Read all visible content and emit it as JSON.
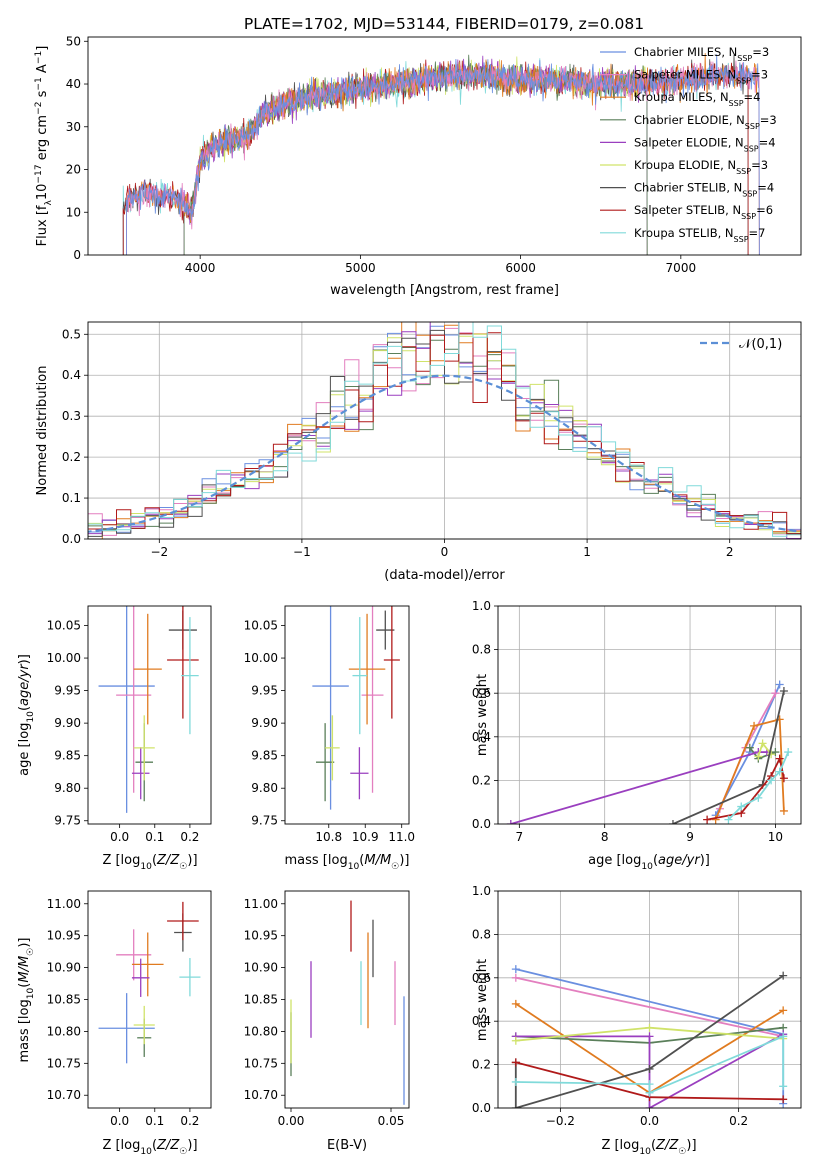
{
  "figure_title": "PLATE=1702, MJD=53144, FIBERID=0179, z=0.081",
  "colors": {
    "Chabrier MILES": "#6a8fe0",
    "Salpeter MILES": "#e37fbf",
    "Kroupa MILES": "#e07b20",
    "Chabrier ELODIE": "#5a7f5a",
    "Salpeter ELODIE": "#9a3fbf",
    "Kroupa ELODIE": "#d0e36a",
    "Chabrier STELIB": "#505050",
    "Salpeter STELIB": "#b01a1a",
    "Kroupa STELIB": "#80dada"
  },
  "chart_data": [
    {
      "id": "spectrum",
      "type": "line",
      "title": "PLATE=1702, MJD=53144, FIBERID=0179, z=0.081",
      "xlabel": "wavelength [Angstrom, rest frame]",
      "ylabel": "Flux [f_λ 10^-17 erg cm^-2 s^-1 A^-1]",
      "xlim": [
        3300,
        7750
      ],
      "ylim": [
        0,
        51
      ],
      "xticks": [
        4000,
        5000,
        6000,
        7000,
        8000
      ],
      "yticks": [
        0,
        10,
        20,
        30,
        40,
        50
      ],
      "legend_position": "top-right",
      "series": [
        {
          "name": "Chabrier MILES",
          "label": "Chabrier MILES, N",
          "sub": "SSP",
          "suffix": "=3"
        },
        {
          "name": "Salpeter MILES",
          "label": "Salpeter MILES, N",
          "sub": "SSP",
          "suffix": "=3"
        },
        {
          "name": "Kroupa MILES",
          "label": "Kroupa MILES, N",
          "sub": "SSP",
          "suffix": "=4"
        },
        {
          "name": "Chabrier ELODIE",
          "label": "Chabrier ELODIE, N",
          "sub": "SSP",
          "suffix": "=3"
        },
        {
          "name": "Salpeter ELODIE",
          "label": "Salpeter ELODIE, N",
          "sub": "SSP",
          "suffix": "=4"
        },
        {
          "name": "Kroupa ELODIE",
          "label": "Kroupa ELODIE, N",
          "sub": "SSP",
          "suffix": "=3"
        },
        {
          "name": "Chabrier STELIB",
          "label": "Chabrier STELIB, N",
          "sub": "SSP",
          "suffix": "=4"
        },
        {
          "name": "Salpeter STELIB",
          "label": "Salpeter STELIB, N",
          "sub": "SSP",
          "suffix": "=6"
        },
        {
          "name": "Kroupa STELIB",
          "label": "Kroupa STELIB, N",
          "sub": "SSP",
          "suffix": "=7"
        }
      ],
      "continuum": {
        "x": [
          3520,
          3550,
          3600,
          3650,
          3700,
          3750,
          3800,
          3850,
          3900,
          3950,
          4000,
          4100,
          4200,
          4300,
          4400,
          4500,
          4600,
          4800,
          5000,
          5200,
          5400,
          5600,
          5800,
          6000,
          6200,
          6400,
          6600,
          6800,
          7000,
          7200,
          7400,
          7500
        ],
        "y": [
          10,
          13,
          14,
          15,
          14,
          13,
          14,
          13,
          12,
          10,
          22,
          26,
          27,
          28,
          33,
          35,
          36,
          38,
          39,
          40,
          41,
          42,
          42,
          41,
          41,
          40,
          40,
          40,
          41,
          42,
          42,
          41
        ]
      }
    },
    {
      "id": "residuals",
      "type": "line",
      "xlabel": "(data-model)/error",
      "ylabel": "Normed distribution",
      "xlim": [
        -2.5,
        2.5
      ],
      "ylim": [
        0,
        0.53
      ],
      "xticks": [
        -2,
        -1,
        0,
        1,
        2
      ],
      "xtick_labels": [
        "−2",
        "−1",
        "0",
        "1",
        "2"
      ],
      "yticks": [
        0.0,
        0.1,
        0.2,
        0.3,
        0.4,
        0.5
      ],
      "ytick_labels": [
        "0.0",
        "0.1",
        "0.2",
        "0.3",
        "0.4",
        "0.5"
      ],
      "grid": true,
      "legend_position": "top-right",
      "reference_curve": {
        "name": "N(0,1)",
        "label": "𝒩(0,1)",
        "mean": 0,
        "sigma": 1
      }
    },
    {
      "id": "age_vs_Z",
      "type": "scatter",
      "xlabel": "Z [log10(Z/Z☉)]",
      "ylabel": "age [log10(age/yr)]",
      "xlim": [
        -0.09,
        0.26
      ],
      "ylim": [
        9.745,
        10.08
      ],
      "xticks": [
        0.0,
        0.1,
        0.2
      ],
      "xtick_labels": [
        "0.0",
        "0.1",
        "0.2"
      ],
      "yticks": [
        9.75,
        9.8,
        9.85,
        9.9,
        9.95,
        10.0,
        10.05
      ],
      "ytick_labels": [
        "9.75",
        "9.80",
        "9.85",
        "9.90",
        "9.95",
        "10.00",
        "10.05"
      ],
      "points": [
        {
          "name": "Chabrier MILES",
          "x": 0.02,
          "y": 9.957,
          "xerr": 0.08,
          "yerr": 0.195
        },
        {
          "name": "Salpeter MILES",
          "x": 0.04,
          "y": 9.943,
          "xerr": 0.05,
          "yerr": 0.15
        },
        {
          "name": "Kroupa MILES",
          "x": 0.08,
          "y": 9.983,
          "xerr": 0.04,
          "yerr": 0.085
        },
        {
          "name": "Chabrier ELODIE",
          "x": 0.07,
          "y": 9.84,
          "xerr": 0.025,
          "yerr": 0.06
        },
        {
          "name": "Salpeter ELODIE",
          "x": 0.06,
          "y": 9.823,
          "xerr": 0.025,
          "yerr": 0.04
        },
        {
          "name": "Kroupa ELODIE",
          "x": 0.07,
          "y": 9.862,
          "xerr": 0.03,
          "yerr": 0.05
        },
        {
          "name": "Chabrier STELIB",
          "x": 0.18,
          "y": 10.043,
          "xerr": 0.04,
          "yerr": 0.03
        },
        {
          "name": "Salpeter STELIB",
          "x": 0.18,
          "y": 9.997,
          "xerr": 0.045,
          "yerr": 0.09
        },
        {
          "name": "Kroupa STELIB",
          "x": 0.2,
          "y": 9.973,
          "xerr": 0.025,
          "yerr": 0.09
        }
      ]
    },
    {
      "id": "age_vs_mass",
      "type": "scatter",
      "xlabel": "mass [log10(M/M☉)]",
      "xlim": [
        10.68,
        11.02
      ],
      "ylim": [
        9.745,
        10.08
      ],
      "xticks": [
        10.8,
        10.9,
        11.0
      ],
      "xtick_labels": [
        "10.8",
        "10.9",
        "11.0"
      ],
      "yticks": [
        9.75,
        9.8,
        9.85,
        9.9,
        9.95,
        10.0,
        10.05
      ],
      "ytick_labels": [
        "9.75",
        "9.80",
        "9.85",
        "9.90",
        "9.95",
        "10.00",
        "10.05"
      ],
      "points": [
        {
          "name": "Chabrier MILES",
          "x": 10.805,
          "y": 9.957,
          "xerr": 0.05,
          "yerr": 0.19
        },
        {
          "name": "Salpeter MILES",
          "x": 10.92,
          "y": 9.943,
          "xerr": 0.03,
          "yerr": 0.15
        },
        {
          "name": "Kroupa MILES",
          "x": 10.905,
          "y": 9.983,
          "xerr": 0.05,
          "yerr": 0.085
        },
        {
          "name": "Chabrier ELODIE",
          "x": 10.79,
          "y": 9.84,
          "xerr": 0.025,
          "yerr": 0.06
        },
        {
          "name": "Salpeter ELODIE",
          "x": 10.884,
          "y": 9.823,
          "xerr": 0.025,
          "yerr": 0.04
        },
        {
          "name": "Kroupa ELODIE",
          "x": 10.81,
          "y": 9.862,
          "xerr": 0.02,
          "yerr": 0.05
        },
        {
          "name": "Chabrier STELIB",
          "x": 10.955,
          "y": 10.043,
          "xerr": 0.025,
          "yerr": 0.03
        },
        {
          "name": "Salpeter STELIB",
          "x": 10.973,
          "y": 9.997,
          "xerr": 0.022,
          "yerr": 0.09
        },
        {
          "name": "Kroupa STELIB",
          "x": 10.885,
          "y": 9.973,
          "xerr": 0.02,
          "yerr": 0.09
        }
      ]
    },
    {
      "id": "mass_weight_vs_age",
      "type": "line",
      "xlabel": "age [log10(age/yr)]",
      "ylabel": "mass weight",
      "xlim": [
        6.75,
        10.3
      ],
      "ylim": [
        0,
        1
      ],
      "xticks": [
        7,
        8,
        9,
        10
      ],
      "yticks": [
        0.0,
        0.2,
        0.4,
        0.6,
        0.8,
        1.0
      ],
      "ytick_labels": [
        "0.0",
        "0.2",
        "0.4",
        "0.6",
        "0.8",
        "1.0"
      ],
      "grid": true,
      "series": [
        {
          "name": "Chabrier MILES",
          "x": [
            9.3,
            9.7,
            10.05
          ],
          "y": [
            0.04,
            0.33,
            0.64
          ]
        },
        {
          "name": "Salpeter MILES",
          "x": [
            9.35,
            9.65,
            10.0
          ],
          "y": [
            0.07,
            0.35,
            0.6
          ]
        },
        {
          "name": "Kroupa MILES",
          "x": [
            9.3,
            9.75,
            10.05,
            10.1
          ],
          "y": [
            0.02,
            0.45,
            0.48,
            0.06
          ]
        },
        {
          "name": "Chabrier ELODIE",
          "x": [
            9.7,
            9.8,
            10.0
          ],
          "y": [
            0.35,
            0.3,
            0.33
          ]
        },
        {
          "name": "Salpeter ELODIE",
          "x": [
            6.9,
            9.8,
            9.9
          ],
          "y": [
            0.0,
            0.33,
            0.33
          ]
        },
        {
          "name": "Kroupa ELODIE",
          "x": [
            9.8,
            9.85,
            9.95
          ],
          "y": [
            0.31,
            0.37,
            0.32
          ]
        },
        {
          "name": "Chabrier STELIB",
          "x": [
            8.8,
            9.85,
            10.1
          ],
          "y": [
            0.0,
            0.18,
            0.61
          ]
        },
        {
          "name": "Salpeter STELIB",
          "x": [
            9.2,
            9.6,
            9.95,
            10.05,
            10.1
          ],
          "y": [
            0.02,
            0.05,
            0.22,
            0.3,
            0.21
          ]
        },
        {
          "name": "Kroupa STELIB",
          "x": [
            9.45,
            9.6,
            9.8,
            9.95,
            10.05,
            10.15
          ],
          "y": [
            0.02,
            0.08,
            0.12,
            0.2,
            0.24,
            0.33
          ]
        }
      ]
    },
    {
      "id": "mass_vs_Z",
      "type": "scatter",
      "xlabel": "Z [log10(Z/Z☉)]",
      "ylabel": "mass [log10(M/M☉)]",
      "xlim": [
        -0.09,
        0.26
      ],
      "ylim": [
        10.68,
        11.02
      ],
      "xticks": [
        0.0,
        0.1,
        0.2
      ],
      "xtick_labels": [
        "0.0",
        "0.1",
        "0.2"
      ],
      "yticks": [
        10.7,
        10.75,
        10.8,
        10.85,
        10.9,
        10.95,
        11.0
      ],
      "ytick_labels": [
        "10.70",
        "10.75",
        "10.80",
        "10.85",
        "10.90",
        "10.95",
        "11.00"
      ],
      "points": [
        {
          "name": "Chabrier MILES",
          "x": 0.02,
          "y": 10.805,
          "xerr": 0.08,
          "yerr": 0.055
        },
        {
          "name": "Salpeter MILES",
          "x": 0.04,
          "y": 10.92,
          "xerr": 0.05,
          "yerr": 0.04
        },
        {
          "name": "Kroupa MILES",
          "x": 0.08,
          "y": 10.905,
          "xerr": 0.045,
          "yerr": 0.05
        },
        {
          "name": "Chabrier ELODIE",
          "x": 0.07,
          "y": 10.79,
          "xerr": 0.02,
          "yerr": 0.03
        },
        {
          "name": "Salpeter ELODIE",
          "x": 0.06,
          "y": 10.884,
          "xerr": 0.025,
          "yerr": 0.03
        },
        {
          "name": "Kroupa ELODIE",
          "x": 0.07,
          "y": 10.81,
          "xerr": 0.03,
          "yerr": 0.03
        },
        {
          "name": "Chabrier STELIB",
          "x": 0.18,
          "y": 10.955,
          "xerr": 0.025,
          "yerr": 0.03
        },
        {
          "name": "Salpeter STELIB",
          "x": 0.18,
          "y": 10.973,
          "xerr": 0.045,
          "yerr": 0.03
        },
        {
          "name": "Kroupa STELIB",
          "x": 0.2,
          "y": 10.885,
          "xerr": 0.03,
          "yerr": 0.03
        }
      ]
    },
    {
      "id": "mass_vs_ebv",
      "type": "scatter",
      "xlabel": "E(B-V)",
      "xlim": [
        -0.003,
        0.059
      ],
      "ylim": [
        10.68,
        11.02
      ],
      "xticks": [
        0.0,
        0.05
      ],
      "xtick_labels": [
        "0.00",
        "0.05"
      ],
      "yticks": [
        10.7,
        10.75,
        10.8,
        10.85,
        10.9,
        10.95,
        11.0
      ],
      "ytick_labels": [
        "10.70",
        "10.75",
        "10.80",
        "10.85",
        "10.90",
        "10.95",
        "11.00"
      ],
      "points": [
        {
          "name": "Chabrier MILES",
          "x": 0.0565,
          "y": 10.77,
          "xerr": 0,
          "yerr": 0.085
        },
        {
          "name": "Salpeter MILES",
          "x": 0.052,
          "y": 10.86,
          "xerr": 0,
          "yerr": 0.05
        },
        {
          "name": "Kroupa MILES",
          "x": 0.0385,
          "y": 10.88,
          "xerr": 0,
          "yerr": 0.075
        },
        {
          "name": "Chabrier ELODIE",
          "x": 0.0,
          "y": 10.78,
          "xerr": 0,
          "yerr": 0.05
        },
        {
          "name": "Salpeter ELODIE",
          "x": 0.01,
          "y": 10.85,
          "xerr": 0,
          "yerr": 0.06
        },
        {
          "name": "Kroupa ELODIE",
          "x": 0.0,
          "y": 10.8,
          "xerr": 0,
          "yerr": 0.05
        },
        {
          "name": "Chabrier STELIB",
          "x": 0.041,
          "y": 10.93,
          "xerr": 0,
          "yerr": 0.045
        },
        {
          "name": "Salpeter STELIB",
          "x": 0.03,
          "y": 10.965,
          "xerr": 0,
          "yerr": 0.04
        },
        {
          "name": "Kroupa STELIB",
          "x": 0.035,
          "y": 10.86,
          "xerr": 0,
          "yerr": 0.05
        }
      ]
    },
    {
      "id": "mass_weight_vs_Z",
      "type": "line",
      "xlabel": "Z [log10(Z/Z☉)]",
      "ylabel": "mass weight",
      "xlim": [
        -0.34,
        0.34
      ],
      "ylim": [
        0,
        1
      ],
      "xticks": [
        -0.2,
        0.0,
        0.2
      ],
      "xtick_labels": [
        "−0.2",
        "0.0",
        "0.2"
      ],
      "yticks": [
        0.0,
        0.2,
        0.4,
        0.6,
        0.8,
        1.0
      ],
      "ytick_labels": [
        "0.0",
        "0.2",
        "0.4",
        "0.6",
        "0.8",
        "1.0"
      ],
      "grid": true,
      "series": [
        {
          "name": "Chabrier MILES",
          "x": [
            -0.3,
            0.3,
            0.3
          ],
          "y": [
            0.64,
            0.34,
            0.02
          ]
        },
        {
          "name": "Salpeter MILES",
          "x": [
            -0.3,
            0.3
          ],
          "y": [
            0.6,
            0.33
          ]
        },
        {
          "name": "Kroupa MILES",
          "x": [
            -0.3,
            0.0,
            0.3
          ],
          "y": [
            0.48,
            0.07,
            0.45
          ]
        },
        {
          "name": "Chabrier ELODIE",
          "x": [
            -0.3,
            0.0,
            0.3
          ],
          "y": [
            0.33,
            0.3,
            0.37
          ]
        },
        {
          "name": "Salpeter ELODIE",
          "x": [
            -0.3,
            0.0,
            0.0,
            0.3
          ],
          "y": [
            0.33,
            0.33,
            0.0,
            0.34
          ]
        },
        {
          "name": "Kroupa ELODIE",
          "x": [
            -0.3,
            0.0,
            0.3
          ],
          "y": [
            0.31,
            0.37,
            0.32
          ]
        },
        {
          "name": "Chabrier STELIB",
          "x": [
            -0.3,
            -0.3,
            0.0,
            0.3
          ],
          "y": [
            0.21,
            0.0,
            0.18,
            0.61
          ]
        },
        {
          "name": "Salpeter STELIB",
          "x": [
            -0.3,
            0.0,
            0.3
          ],
          "y": [
            0.21,
            0.05,
            0.04
          ]
        },
        {
          "name": "Kroupa STELIB",
          "x": [
            -0.3,
            0.0,
            0.0,
            0.3,
            0.3
          ],
          "y": [
            0.12,
            0.11,
            0.07,
            0.33,
            0.1
          ]
        }
      ]
    }
  ]
}
